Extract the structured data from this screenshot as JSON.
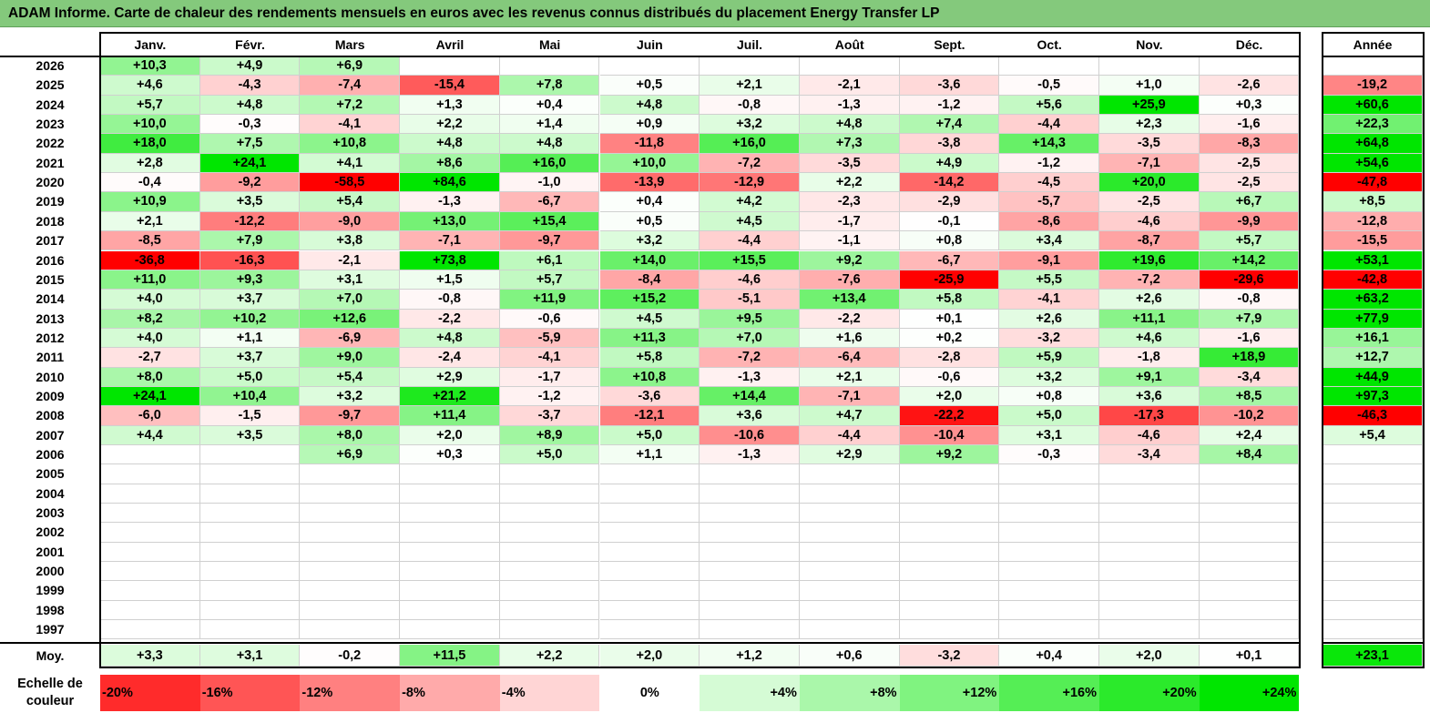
{
  "title": "ADAM Informe. Carte de chaleur des rendements mensuels en euros avec les revenus connus distribués du placement Energy Transfer LP",
  "colors": {
    "negative_max": "#ff0000",
    "neutral": "#ffffff",
    "positive_max": "#00e600",
    "title_bar": "#84c97c"
  },
  "year_header": "Année",
  "avg_label": "Moy.",
  "scale": {
    "label_line1": "Echelle de",
    "label_line2": "couleur",
    "stops": [
      "-20%",
      "-16%",
      "-12%",
      "-8%",
      "-4%",
      "0%",
      "+4%",
      "+8%",
      "+12%",
      "+16%",
      "+20%",
      "+24%"
    ]
  },
  "chart_data": {
    "type": "heatmap",
    "title": "ADAM Informe. Carte de chaleur des rendements mensuels en euros avec les revenus connus distribués du placement Energy Transfer LP",
    "columns": [
      "Janv.",
      "Févr.",
      "Mars",
      "Avril",
      "Mai",
      "Juin",
      "Juil.",
      "Août",
      "Sept.",
      "Oct.",
      "Nov.",
      "Déc."
    ],
    "rows": [
      {
        "year": "2026",
        "values": [
          "+10,3",
          "+4,9",
          "+6,9",
          "",
          "",
          "",
          "",
          "",
          "",
          "",
          "",
          ""
        ],
        "annual": ""
      },
      {
        "year": "2025",
        "values": [
          "+4,6",
          "-4,3",
          "-7,4",
          "-15,4",
          "+7,8",
          "+0,5",
          "+2,1",
          "-2,1",
          "-3,6",
          "-0,5",
          "+1,0",
          "-2,6"
        ],
        "annual": "-19,2"
      },
      {
        "year": "2024",
        "values": [
          "+5,7",
          "+4,8",
          "+7,2",
          "+1,3",
          "+0,4",
          "+4,8",
          "-0,8",
          "-1,3",
          "-1,2",
          "+5,6",
          "+25,9",
          "+0,3"
        ],
        "annual": "+60,6"
      },
      {
        "year": "2023",
        "values": [
          "+10,0",
          "-0,3",
          "-4,1",
          "+2,2",
          "+1,4",
          "+0,9",
          "+3,2",
          "+4,8",
          "+7,4",
          "-4,4",
          "+2,3",
          "-1,6"
        ],
        "annual": "+22,3"
      },
      {
        "year": "2022",
        "values": [
          "+18,0",
          "+7,5",
          "+10,8",
          "+4,8",
          "+4,8",
          "-11,8",
          "+16,0",
          "+7,3",
          "-3,8",
          "+14,3",
          "-3,5",
          "-8,3"
        ],
        "annual": "+64,8"
      },
      {
        "year": "2021",
        "values": [
          "+2,8",
          "+24,1",
          "+4,1",
          "+8,6",
          "+16,0",
          "+10,0",
          "-7,2",
          "-3,5",
          "+4,9",
          "-1,2",
          "-7,1",
          "-2,5"
        ],
        "annual": "+54,6"
      },
      {
        "year": "2020",
        "values": [
          "-0,4",
          "-9,2",
          "-58,5",
          "+84,6",
          "-1,0",
          "-13,9",
          "-12,9",
          "+2,2",
          "-14,2",
          "-4,5",
          "+20,0",
          "-2,5"
        ],
        "annual": "-47,8"
      },
      {
        "year": "2019",
        "values": [
          "+10,9",
          "+3,5",
          "+5,4",
          "-1,3",
          "-6,7",
          "+0,4",
          "+4,2",
          "-2,3",
          "-2,9",
          "-5,7",
          "-2,5",
          "+6,7"
        ],
        "annual": "+8,5"
      },
      {
        "year": "2018",
        "values": [
          "+2,1",
          "-12,2",
          "-9,0",
          "+13,0",
          "+15,4",
          "+0,5",
          "+4,5",
          "-1,7",
          "-0,1",
          "-8,6",
          "-4,6",
          "-9,9"
        ],
        "annual": "-12,8"
      },
      {
        "year": "2017",
        "values": [
          "-8,5",
          "+7,9",
          "+3,8",
          "-7,1",
          "-9,7",
          "+3,2",
          "-4,4",
          "-1,1",
          "+0,8",
          "+3,4",
          "-8,7",
          "+5,7"
        ],
        "annual": "-15,5"
      },
      {
        "year": "2016",
        "values": [
          "-36,8",
          "-16,3",
          "-2,1",
          "+73,8",
          "+6,1",
          "+14,0",
          "+15,5",
          "+9,2",
          "-6,7",
          "-9,1",
          "+19,6",
          "+14,2"
        ],
        "annual": "+53,1"
      },
      {
        "year": "2015",
        "values": [
          "+11,0",
          "+9,3",
          "+3,1",
          "+1,5",
          "+5,7",
          "-8,4",
          "-4,6",
          "-7,6",
          "-25,9",
          "+5,5",
          "-7,2",
          "-29,6"
        ],
        "annual": "-42,8"
      },
      {
        "year": "2014",
        "values": [
          "+4,0",
          "+3,7",
          "+7,0",
          "-0,8",
          "+11,9",
          "+15,2",
          "-5,1",
          "+13,4",
          "+5,8",
          "-4,1",
          "+2,6",
          "-0,8"
        ],
        "annual": "+63,2"
      },
      {
        "year": "2013",
        "values": [
          "+8,2",
          "+10,2",
          "+12,6",
          "-2,2",
          "-0,6",
          "+4,5",
          "+9,5",
          "-2,2",
          "+0,1",
          "+2,6",
          "+11,1",
          "+7,9"
        ],
        "annual": "+77,9"
      },
      {
        "year": "2012",
        "values": [
          "+4,0",
          "+1,1",
          "-6,9",
          "+4,8",
          "-5,9",
          "+11,3",
          "+7,0",
          "+1,6",
          "+0,2",
          "-3,2",
          "+4,6",
          "-1,6"
        ],
        "annual": "+16,1"
      },
      {
        "year": "2011",
        "values": [
          "-2,7",
          "+3,7",
          "+9,0",
          "-2,4",
          "-4,1",
          "+5,8",
          "-7,2",
          "-6,4",
          "-2,8",
          "+5,9",
          "-1,8",
          "+18,9"
        ],
        "annual": "+12,7"
      },
      {
        "year": "2010",
        "values": [
          "+8,0",
          "+5,0",
          "+5,4",
          "+2,9",
          "-1,7",
          "+10,8",
          "-1,3",
          "+2,1",
          "-0,6",
          "+3,2",
          "+9,1",
          "-3,4"
        ],
        "annual": "+44,9"
      },
      {
        "year": "2009",
        "values": [
          "+24,1",
          "+10,4",
          "+3,2",
          "+21,2",
          "-1,2",
          "-3,6",
          "+14,4",
          "-7,1",
          "+2,0",
          "+0,8",
          "+3,6",
          "+8,5"
        ],
        "annual": "+97,3"
      },
      {
        "year": "2008",
        "values": [
          "-6,0",
          "-1,5",
          "-9,7",
          "+11,4",
          "-3,7",
          "-12,1",
          "+3,6",
          "+4,7",
          "-22,2",
          "+5,0",
          "-17,3",
          "-10,2"
        ],
        "annual": "-46,3"
      },
      {
        "year": "2007",
        "values": [
          "+4,4",
          "+3,5",
          "+8,0",
          "+2,0",
          "+8,9",
          "+5,0",
          "-10,6",
          "-4,4",
          "-10,4",
          "+3,1",
          "-4,6",
          "+2,4"
        ],
        "annual": "+5,4"
      },
      {
        "year": "2006",
        "values": [
          "",
          "",
          "+6,9",
          "+0,3",
          "+5,0",
          "+1,1",
          "-1,3",
          "+2,9",
          "+9,2",
          "-0,3",
          "-3,4",
          "+8,4"
        ],
        "annual": ""
      },
      {
        "year": "2005",
        "values": [
          "",
          "",
          "",
          "",
          "",
          "",
          "",
          "",
          "",
          "",
          "",
          ""
        ],
        "annual": ""
      },
      {
        "year": "2004",
        "values": [
          "",
          "",
          "",
          "",
          "",
          "",
          "",
          "",
          "",
          "",
          "",
          ""
        ],
        "annual": ""
      },
      {
        "year": "2003",
        "values": [
          "",
          "",
          "",
          "",
          "",
          "",
          "",
          "",
          "",
          "",
          "",
          ""
        ],
        "annual": ""
      },
      {
        "year": "2002",
        "values": [
          "",
          "",
          "",
          "",
          "",
          "",
          "",
          "",
          "",
          "",
          "",
          ""
        ],
        "annual": ""
      },
      {
        "year": "2001",
        "values": [
          "",
          "",
          "",
          "",
          "",
          "",
          "",
          "",
          "",
          "",
          "",
          ""
        ],
        "annual": ""
      },
      {
        "year": "2000",
        "values": [
          "",
          "",
          "",
          "",
          "",
          "",
          "",
          "",
          "",
          "",
          "",
          ""
        ],
        "annual": ""
      },
      {
        "year": "1999",
        "values": [
          "",
          "",
          "",
          "",
          "",
          "",
          "",
          "",
          "",
          "",
          "",
          ""
        ],
        "annual": ""
      },
      {
        "year": "1998",
        "values": [
          "",
          "",
          "",
          "",
          "",
          "",
          "",
          "",
          "",
          "",
          "",
          ""
        ],
        "annual": ""
      },
      {
        "year": "1997",
        "values": [
          "",
          "",
          "",
          "",
          "",
          "",
          "",
          "",
          "",
          "",
          "",
          ""
        ],
        "annual": ""
      }
    ],
    "averages": [
      "+3,3",
      "+3,1",
      "-0,2",
      "+11,5",
      "+2,2",
      "+2,0",
      "+1,2",
      "+0,6",
      "-3,2",
      "+0,4",
      "+2,0",
      "+0,1"
    ],
    "average_annual": "+23,1"
  }
}
